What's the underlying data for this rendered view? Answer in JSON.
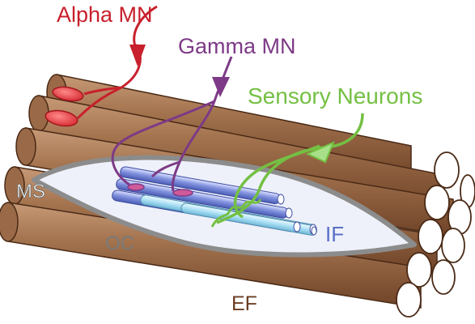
{
  "labels": {
    "alpha": "Alpha MN",
    "gamma": "Gamma MN",
    "sensory": "Sensory Neurons",
    "ms": "MS",
    "oc": "OC",
    "if": "IF",
    "ef": "EF"
  },
  "colors": {
    "alpha": "#c8202c",
    "gamma": "#7d3a86",
    "sensory": "#74c043",
    "extrafusal": "#8a5b3e",
    "capsule": "#808080",
    "intrafusal": "#6c7fd1",
    "background": "#ffffff"
  }
}
